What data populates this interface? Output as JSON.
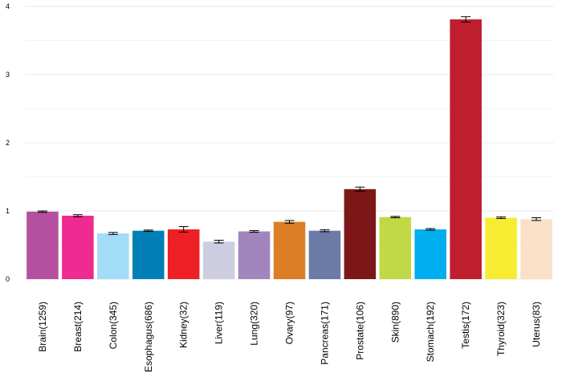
{
  "chart_data": {
    "type": "bar",
    "title": "",
    "xlabel": "",
    "ylabel": "",
    "ylim": [
      0,
      4
    ],
    "yticks": [
      "0",
      "1",
      "2",
      "3",
      "4"
    ],
    "grid": true,
    "legend": "none",
    "categories": [
      "Brain(1259)",
      "Breast(214)",
      "Colon(345)",
      "Esophagus(686)",
      "Kidney(32)",
      "Liver(119)",
      "Lung(320)",
      "Ovary(97)",
      "Pancreas(171)",
      "Prostate(106)",
      "Skin(890)",
      "Stomach(192)",
      "Testis(172)",
      "Thyroid(323)",
      "Uterus(83)"
    ],
    "values": [
      0.99,
      0.93,
      0.67,
      0.71,
      0.73,
      0.55,
      0.7,
      0.84,
      0.71,
      1.32,
      0.91,
      0.73,
      3.81,
      0.9,
      0.88
    ],
    "errors": [
      0.01,
      0.015,
      0.015,
      0.01,
      0.04,
      0.02,
      0.012,
      0.02,
      0.015,
      0.03,
      0.01,
      0.012,
      0.04,
      0.012,
      0.02
    ],
    "colors": [
      "#b4509f",
      "#ef2a90",
      "#a2dcf7",
      "#007fb6",
      "#ef1f26",
      "#cccde0",
      "#a385be",
      "#dc7e26",
      "#6c7aa6",
      "#7d1616",
      "#c0d945",
      "#00aeef",
      "#be1e2d",
      "#f7ec31",
      "#fae0c8"
    ]
  }
}
